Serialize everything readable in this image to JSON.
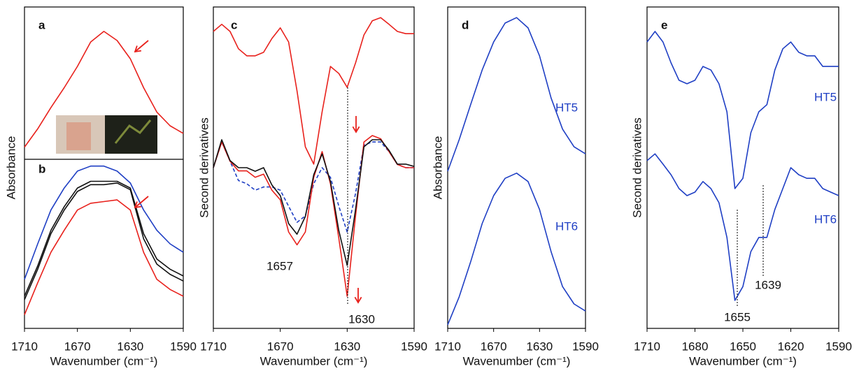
{
  "chart_data": [
    {
      "type": "line",
      "panel": "a",
      "xlim": [
        1710,
        1590
      ],
      "x": [
        1710,
        1700,
        1690,
        1680,
        1670,
        1660,
        1650,
        1640,
        1630,
        1620,
        1610,
        1600,
        1590
      ],
      "ylim": [
        0,
        1
      ],
      "series": [
        {
          "color": "#e8211c",
          "values": [
            0.08,
            0.2,
            0.34,
            0.47,
            0.61,
            0.77,
            0.84,
            0.78,
            0.66,
            0.47,
            0.31,
            0.22,
            0.17
          ]
        }
      ]
    },
    {
      "type": "line",
      "panel": "b",
      "xlim": [
        1710,
        1590
      ],
      "xticks": [
        1710,
        1670,
        1630,
        1590
      ],
      "xlabel": "Wavenumber (cm⁻¹)",
      "ylabel": "Absorbance",
      "x": [
        1710,
        1700,
        1690,
        1680,
        1670,
        1660,
        1650,
        1640,
        1630,
        1620,
        1610,
        1600,
        1590
      ],
      "ylim": [
        0,
        1
      ],
      "series": [
        {
          "color": "#1f3fc4",
          "values": [
            0.29,
            0.5,
            0.7,
            0.83,
            0.93,
            0.96,
            0.96,
            0.93,
            0.86,
            0.7,
            0.58,
            0.5,
            0.45
          ]
        },
        {
          "color": "#111111",
          "values": [
            0.19,
            0.37,
            0.58,
            0.72,
            0.83,
            0.87,
            0.87,
            0.87,
            0.83,
            0.56,
            0.41,
            0.35,
            0.31
          ]
        },
        {
          "color": "#111111",
          "values": [
            0.17,
            0.35,
            0.56,
            0.7,
            0.81,
            0.85,
            0.85,
            0.86,
            0.82,
            0.53,
            0.38,
            0.32,
            0.28
          ]
        },
        {
          "color": "#e8211c",
          "values": [
            0.08,
            0.27,
            0.45,
            0.58,
            0.7,
            0.74,
            0.75,
            0.76,
            0.7,
            0.45,
            0.29,
            0.23,
            0.19
          ]
        }
      ]
    },
    {
      "type": "line",
      "panel": "c",
      "xlim": [
        1710,
        1590
      ],
      "xticks": [
        1710,
        1670,
        1630,
        1590
      ],
      "xlabel": "Wavenumber (cm⁻¹)",
      "ylabel": "Second derivatives",
      "annotations": [
        "1657",
        "1630"
      ],
      "x": [
        1710,
        1705,
        1700,
        1695,
        1690,
        1685,
        1680,
        1675,
        1670,
        1665,
        1660,
        1655,
        1650,
        1645,
        1640,
        1635,
        1630,
        1625,
        1620,
        1615,
        1610,
        1605,
        1600,
        1595,
        1590
      ],
      "ylim": [
        0,
        1
      ],
      "series": [
        {
          "color": "#e8211c",
          "values": [
            0.924,
            0.946,
            0.924,
            0.87,
            0.848,
            0.848,
            0.859,
            0.902,
            0.935,
            0.891,
            0.739,
            0.565,
            0.511,
            0.674,
            0.815,
            0.793,
            0.75,
            0.826,
            0.913,
            0.957,
            0.967,
            0.946,
            0.924,
            0.917,
            0.917
          ]
        },
        {
          "color": "#1f3fc4",
          "dashed": true,
          "values": [
            0.5,
            0.58,
            0.52,
            0.46,
            0.45,
            0.43,
            0.44,
            0.44,
            0.43,
            0.38,
            0.33,
            0.35,
            0.45,
            0.5,
            0.47,
            0.38,
            0.3,
            0.42,
            0.57,
            0.58,
            0.58,
            0.55,
            0.51,
            0.5,
            0.5
          ]
        },
        {
          "color": "#e8211c",
          "values": [
            0.5,
            0.58,
            0.52,
            0.49,
            0.49,
            0.47,
            0.48,
            0.43,
            0.4,
            0.3,
            0.26,
            0.3,
            0.47,
            0.55,
            0.45,
            0.28,
            0.1,
            0.35,
            0.58,
            0.6,
            0.59,
            0.55,
            0.51,
            0.5,
            0.5
          ]
        },
        {
          "color": "#111111",
          "values": [
            0.5,
            0.587,
            0.522,
            0.5,
            0.5,
            0.489,
            0.5,
            0.446,
            0.413,
            0.326,
            0.293,
            0.348,
            0.478,
            0.543,
            0.457,
            0.304,
            0.196,
            0.37,
            0.565,
            0.587,
            0.587,
            0.554,
            0.511,
            0.511,
            0.504
          ]
        }
      ]
    },
    {
      "type": "line",
      "panel": "d",
      "xlim": [
        1710,
        1590
      ],
      "xticks": [
        1710,
        1670,
        1630,
        1590
      ],
      "xlabel": "Wavenumber (cm⁻¹)",
      "ylabel": "Absorbance",
      "x": [
        1710,
        1700,
        1690,
        1680,
        1670,
        1660,
        1650,
        1640,
        1630,
        1620,
        1610,
        1600,
        1590
      ],
      "ylim": [
        0,
        1
      ],
      "series": [
        {
          "name": "HT5",
          "color": "#1f3fc4",
          "values": [
            0.489,
            0.587,
            0.696,
            0.804,
            0.891,
            0.95,
            0.967,
            0.935,
            0.848,
            0.717,
            0.62,
            0.565,
            0.543
          ]
        },
        {
          "name": "HT6",
          "color": "#1f3fc4",
          "values": [
            0.011,
            0.098,
            0.207,
            0.326,
            0.413,
            0.467,
            0.483,
            0.457,
            0.37,
            0.239,
            0.13,
            0.076,
            0.054
          ]
        }
      ]
    },
    {
      "type": "line",
      "panel": "e",
      "xlim": [
        1710,
        1590
      ],
      "xticks": [
        1710,
        1680,
        1650,
        1620,
        1590
      ],
      "xlabel": "Wavenumber (cm⁻¹)",
      "ylabel": "Second derivatives",
      "annotations": [
        "1655",
        "1639"
      ],
      "x": [
        1710,
        1705,
        1700,
        1695,
        1690,
        1685,
        1680,
        1675,
        1670,
        1665,
        1660,
        1655,
        1650,
        1645,
        1640,
        1635,
        1630,
        1625,
        1620,
        1615,
        1610,
        1605,
        1600,
        1595,
        1590
      ],
      "ylim": [
        0,
        1
      ],
      "series": [
        {
          "name": "HT5",
          "color": "#1f3fc4",
          "values": [
            0.891,
            0.924,
            0.891,
            0.826,
            0.772,
            0.761,
            0.772,
            0.815,
            0.804,
            0.761,
            0.674,
            0.435,
            0.467,
            0.609,
            0.674,
            0.696,
            0.804,
            0.87,
            0.891,
            0.859,
            0.848,
            0.848,
            0.815,
            0.815,
            0.815
          ]
        },
        {
          "name": "HT6",
          "color": "#1f3fc4",
          "values": [
            0.522,
            0.543,
            0.511,
            0.478,
            0.435,
            0.413,
            0.424,
            0.457,
            0.435,
            0.391,
            0.283,
            0.087,
            0.13,
            0.239,
            0.283,
            0.283,
            0.37,
            0.435,
            0.5,
            0.478,
            0.467,
            0.467,
            0.435,
            0.424,
            0.413
          ]
        }
      ]
    }
  ]
}
